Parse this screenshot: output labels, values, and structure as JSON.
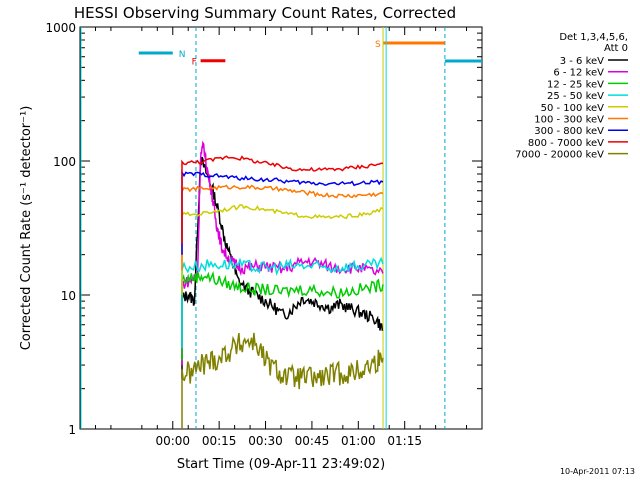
{
  "chart_data": {
    "type": "line",
    "title": "HESSI Observing Summary Count Rates, Corrected",
    "xlabel": "Start Time (09-Apr-11 23:49:02)",
    "ylabel": "Corrected Count Rate (s⁻¹ detector⁻¹)",
    "yscale": "log",
    "ylim": [
      1,
      1000
    ],
    "xlim_minutes": [
      -30,
      100
    ],
    "x_tick_labels": [
      "00:00",
      "00:15",
      "00:30",
      "00:45",
      "01:00",
      "01:15"
    ],
    "y_tick_labels": [
      "1",
      "10",
      "100",
      "1000"
    ],
    "timestamp": "10-Apr-2011 07:13",
    "legend": {
      "header_line1": "Det 1,3,4,5,6,",
      "header_line2": "Att 0",
      "placement": "right"
    },
    "flags": [
      {
        "label": "N",
        "color": "#00aacc",
        "x_start": -11.0,
        "x_end": 0.0,
        "level": 640,
        "dashed_lines": [
          7.5,
          88.0
        ]
      },
      {
        "label": "F",
        "color": "#ee0000",
        "x_start": 9.0,
        "x_end": 17.0,
        "level": 560
      },
      {
        "label": "S",
        "color": "#ff7700",
        "x_start": 68.0,
        "x_end": 88.0,
        "level": 760
      }
    ],
    "series": [
      {
        "name": "3 - 6 keV",
        "color": "#000000",
        "x": [
          3,
          5,
          7,
          9,
          11,
          13,
          15,
          17,
          19,
          21,
          24,
          27,
          30,
          33,
          36,
          39,
          42,
          45,
          48,
          51,
          54,
          57,
          60,
          63,
          66,
          68
        ],
        "y": [
          9.5,
          10,
          9,
          105,
          80,
          60,
          40,
          25,
          18,
          13,
          11,
          10,
          9,
          8,
          7,
          8,
          9.5,
          9,
          8.5,
          8,
          8.5,
          8,
          7.5,
          7,
          6.5,
          5.5
        ]
      },
      {
        "name": "6 - 12 keV",
        "color": "#dd00dd",
        "x": [
          3,
          6,
          8,
          9,
          10,
          11,
          12,
          13,
          14,
          15,
          16,
          18,
          20,
          22,
          25,
          28,
          32,
          36,
          40,
          44,
          48,
          52,
          56,
          60,
          64,
          68
        ],
        "y": [
          12,
          13,
          14,
          110,
          130,
          90,
          70,
          50,
          35,
          28,
          22,
          19,
          17,
          16,
          16,
          16.5,
          16,
          15.5,
          17,
          18,
          17,
          16,
          16,
          16,
          15,
          14.5
        ]
      },
      {
        "name": "12 - 25 keV",
        "color": "#00cc00",
        "x": [
          3,
          7,
          10,
          14,
          18,
          22,
          26,
          30,
          35,
          40,
          45,
          50,
          55,
          60,
          65,
          68
        ],
        "y": [
          13,
          13.5,
          14,
          13,
          12,
          11.5,
          11,
          11,
          10.5,
          11,
          11,
          10.5,
          10.5,
          11,
          11.5,
          12
        ]
      },
      {
        "name": "25 - 50 keV",
        "color": "#00dddd",
        "x": [
          3,
          8,
          13,
          18,
          23,
          28,
          33,
          38,
          43,
          48,
          53,
          58,
          63,
          68
        ],
        "y": [
          16,
          16.5,
          17,
          17,
          16.5,
          16,
          16,
          16.5,
          16.5,
          16,
          16,
          16.5,
          16.5,
          17
        ]
      },
      {
        "name": "50 - 100 keV",
        "color": "#cccc00",
        "x": [
          3,
          8,
          13,
          18,
          23,
          28,
          33,
          38,
          43,
          48,
          53,
          58,
          63,
          68
        ],
        "y": [
          40,
          40,
          42,
          44,
          46,
          44,
          42,
          40,
          39,
          38,
          38,
          39,
          40,
          44
        ]
      },
      {
        "name": "100 - 300 keV",
        "color": "#ff7700",
        "x": [
          3,
          8,
          13,
          18,
          23,
          28,
          33,
          38,
          43,
          48,
          53,
          58,
          63,
          68
        ],
        "y": [
          61,
          62,
          63,
          64,
          64,
          63,
          62,
          60,
          58,
          56,
          55,
          55,
          56,
          57
        ]
      },
      {
        "name": "300 - 800 keV",
        "color": "#0000ee",
        "x": [
          3,
          8,
          13,
          18,
          23,
          28,
          33,
          38,
          43,
          48,
          53,
          58,
          63,
          68
        ],
        "y": [
          80,
          80,
          78,
          76,
          74,
          73,
          72,
          70,
          69,
          68,
          68,
          68,
          69,
          70
        ]
      },
      {
        "name": "800 - 7000 keV",
        "color": "#ee0000",
        "x": [
          3,
          8,
          13,
          18,
          23,
          28,
          33,
          38,
          43,
          48,
          53,
          58,
          63,
          68
        ],
        "y": [
          97,
          98,
          102,
          108,
          104,
          98,
          93,
          88,
          86,
          86,
          87,
          89,
          92,
          96
        ]
      },
      {
        "name": "7000 - 20000 keV",
        "color": "#808000",
        "x": [
          3,
          6,
          9,
          12,
          15,
          18,
          21,
          24,
          27,
          30,
          33,
          36,
          39,
          42,
          45,
          48,
          51,
          54,
          57,
          60,
          63,
          66,
          68
        ],
        "y": [
          2.6,
          2.6,
          3.0,
          3.2,
          3.4,
          3.8,
          4.2,
          4.6,
          4.4,
          3.2,
          2.8,
          2.5,
          2.4,
          2.4,
          2.4,
          2.4,
          2.5,
          2.6,
          2.6,
          2.7,
          2.9,
          3.2,
          3.4
        ]
      }
    ]
  }
}
